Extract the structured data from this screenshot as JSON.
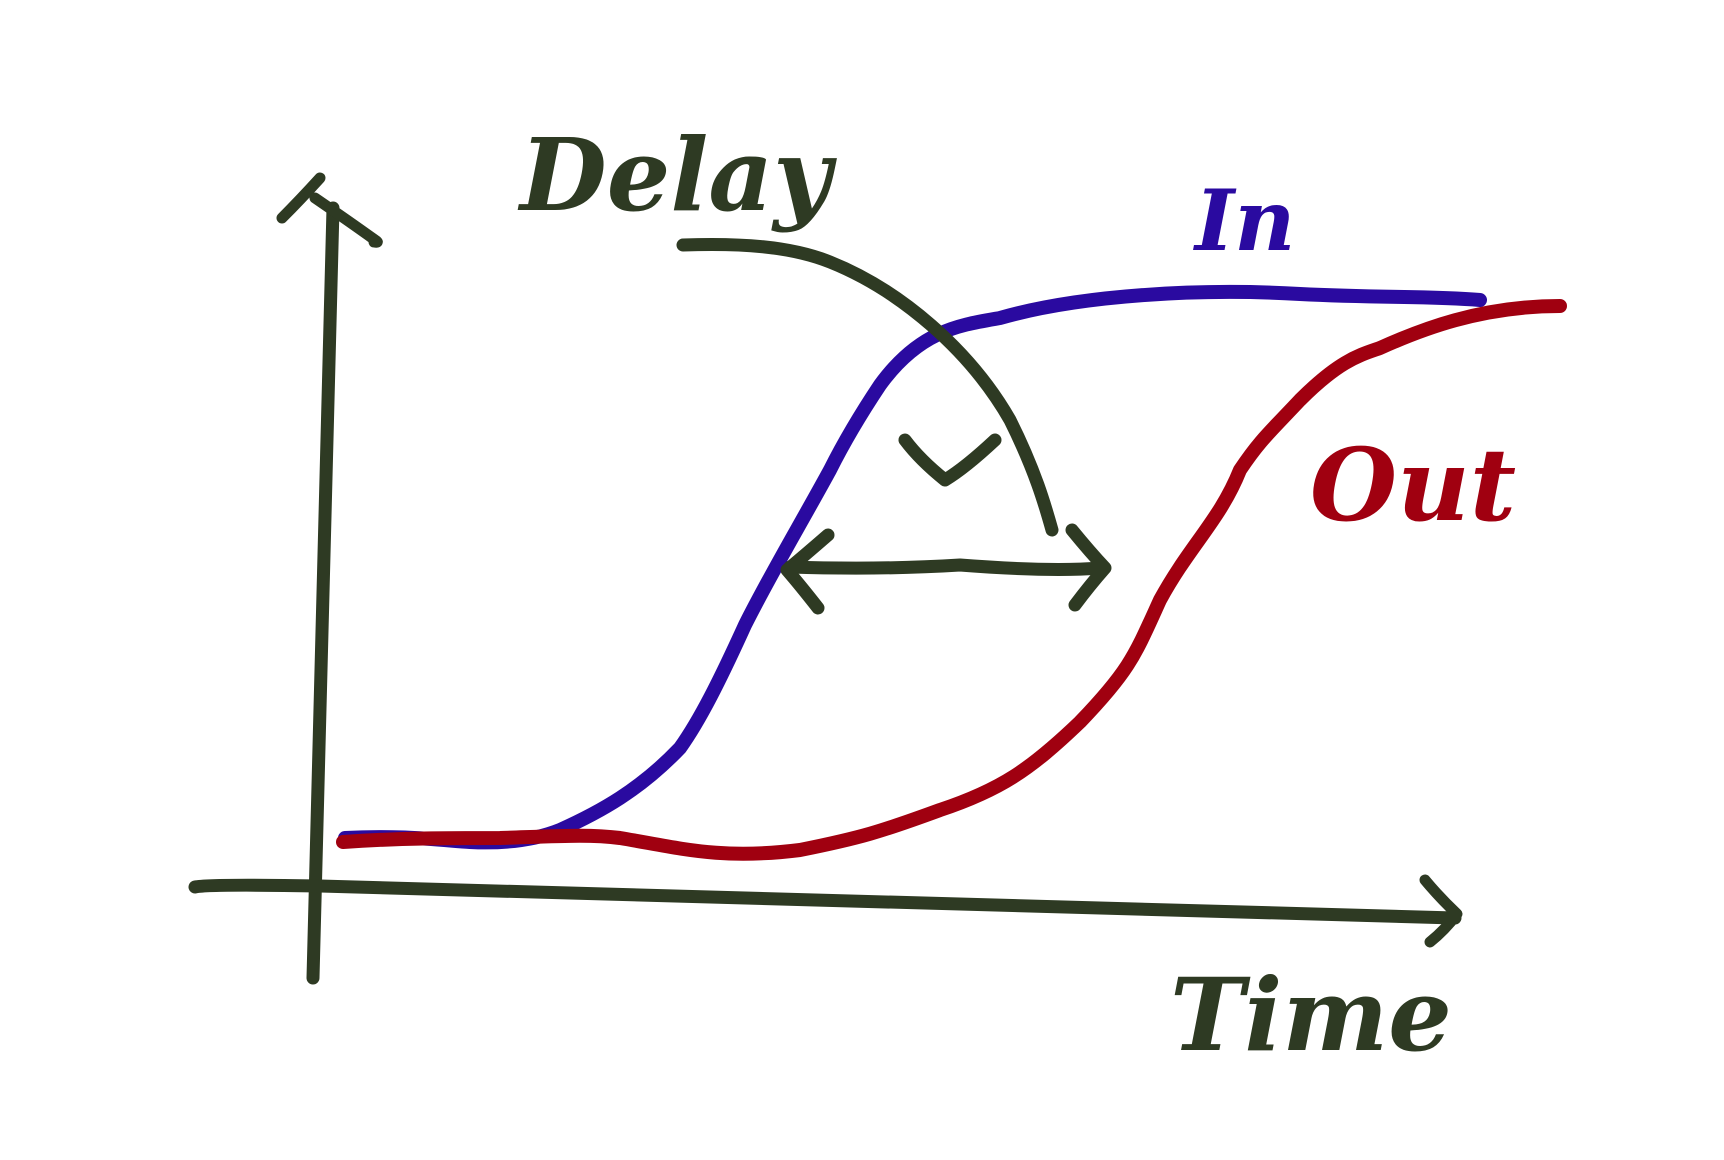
{
  "colors": {
    "background": "#ffffff",
    "axes": "#2e3a23",
    "input_curve": "#2a0aa0",
    "output_curve": "#a00010",
    "annotation": "#2e3a23"
  },
  "labels": {
    "delay": "Delay",
    "in": "In",
    "out": "Out",
    "time": "Time"
  },
  "annotations": {
    "delay_arrow": "curved-arrow-pointing-to-gap",
    "delay_span": "double-headed-arrow"
  },
  "chart_data": {
    "type": "line",
    "title": "",
    "xlabel": "Time",
    "ylabel": "",
    "grid": false,
    "series": [
      {
        "name": "In",
        "color": "#2a0aa0",
        "shape": "s-curve-rising-early"
      },
      {
        "name": "Out",
        "color": "#a00010",
        "shape": "s-curve-rising-delayed"
      }
    ],
    "annotation": "Delay"
  }
}
